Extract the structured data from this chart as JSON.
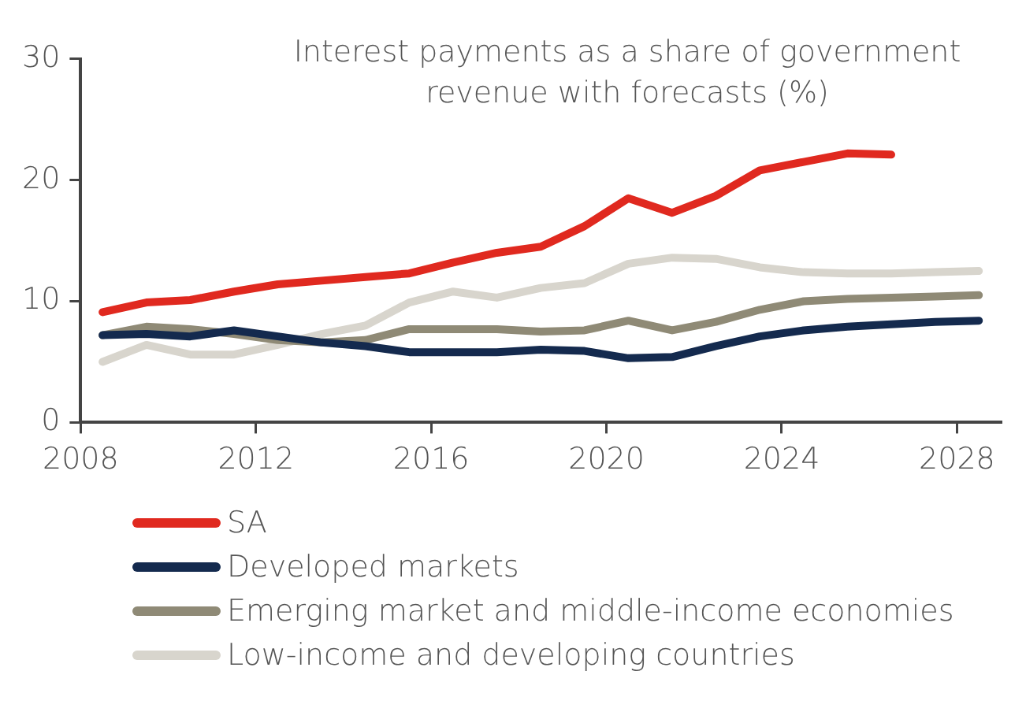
{
  "chart_data": {
    "type": "line",
    "title": "Interest payments as a share of government revenue with forecasts (%)",
    "x": [
      2008.5,
      2009.5,
      2010.5,
      2011.5,
      2012.5,
      2013.5,
      2014.5,
      2015.5,
      2016.5,
      2017.5,
      2018.5,
      2019.5,
      2020.5,
      2021.5,
      2022.5,
      2023.5,
      2024.5,
      2025.5,
      2026.5,
      2027.5,
      2028.5
    ],
    "series": [
      {
        "name": "SA",
        "color": "#e0291f",
        "values": [
          9.1,
          9.9,
          10.1,
          10.8,
          11.4,
          11.7,
          12.0,
          12.3,
          13.2,
          14.0,
          14.5,
          16.2,
          18.5,
          17.3,
          18.7,
          20.8,
          21.5,
          22.2,
          22.1,
          null,
          null
        ]
      },
      {
        "name": "Developed markets",
        "color": "#142a4e",
        "values": [
          7.2,
          7.3,
          7.1,
          7.6,
          7.1,
          6.6,
          6.3,
          5.8,
          5.8,
          5.8,
          6.0,
          5.9,
          5.3,
          5.4,
          6.3,
          7.1,
          7.6,
          7.9,
          8.1,
          8.3,
          8.4
        ]
      },
      {
        "name": "Emerging market and middle-income economies",
        "color": "#8f8a76",
        "values": [
          7.2,
          7.9,
          7.7,
          7.3,
          6.8,
          6.6,
          6.8,
          7.7,
          7.7,
          7.7,
          7.5,
          7.6,
          8.4,
          7.6,
          8.3,
          9.3,
          10.0,
          10.2,
          10.3,
          10.4,
          10.5
        ]
      },
      {
        "name": "Low-income and developing countries",
        "color": "#d8d5cd",
        "values": [
          5.0,
          6.4,
          5.6,
          5.6,
          6.4,
          7.3,
          8.0,
          9.9,
          10.8,
          10.3,
          11.1,
          11.5,
          13.1,
          13.6,
          13.5,
          12.8,
          12.4,
          12.3,
          12.3,
          12.4,
          12.5
        ]
      }
    ],
    "xlim": [
      2008,
      2029
    ],
    "xticks": [
      2008,
      2012,
      2016,
      2020,
      2024,
      2028
    ],
    "ylim": [
      0,
      30
    ],
    "yticks": [
      0,
      10,
      20,
      30
    ],
    "grid": false,
    "legend": "bottom",
    "marker": "none",
    "line_style": "solid"
  }
}
